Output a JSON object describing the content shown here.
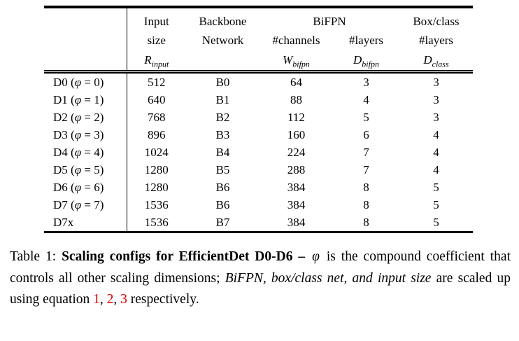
{
  "colors": {
    "background": "#ffffff",
    "text": "#000000",
    "rule": "#000000",
    "ref_red": "#e60000"
  },
  "table": {
    "bifpn_group": "BiFPN",
    "header": {
      "cols": [
        {
          "l1": "Input",
          "l2": "size",
          "var": "R",
          "sub": "input"
        },
        {
          "l1": "Backbone",
          "l2": "Network"
        },
        {
          "l1": "",
          "l2": "#channels",
          "var": "W",
          "sub": "bifpn"
        },
        {
          "l1": "",
          "l2": "#layers",
          "var": "D",
          "sub": "bifpn"
        },
        {
          "l1": "Box/class",
          "l2": "#layers",
          "var": "D",
          "sub": "class"
        }
      ]
    },
    "rows": [
      [
        "D0 (φ = 0)",
        "512",
        "B0",
        "64",
        "3",
        "3"
      ],
      [
        "D1 (φ = 1)",
        "640",
        "B1",
        "88",
        "4",
        "3"
      ],
      [
        "D2 (φ = 2)",
        "768",
        "B2",
        "112",
        "5",
        "3"
      ],
      [
        "D3 (φ = 3)",
        "896",
        "B3",
        "160",
        "6",
        "4"
      ],
      [
        "D4 (φ = 4)",
        "1024",
        "B4",
        "224",
        "7",
        "4"
      ],
      [
        "D5 (φ = 5)",
        "1280",
        "B5",
        "288",
        "7",
        "4"
      ],
      [
        "D6 (φ = 6)",
        "1280",
        "B6",
        "384",
        "8",
        "5"
      ],
      [
        "D7 (φ = 7)",
        "1536",
        "B6",
        "384",
        "8",
        "5"
      ],
      [
        "D7x",
        "1536",
        "B7",
        "384",
        "8",
        "5"
      ]
    ]
  },
  "caption": {
    "label": "Table 1: ",
    "bold": "Scaling configs for EfficientDet D0-D6 – ",
    "phi": "φ",
    "text_after_phi": " is the compound coefficient that controls all other scaling dimensions; ",
    "italic": "BiFPN, box/class net, and input size",
    "text_mid": " are scaled up using equation ",
    "refs": [
      "1",
      "2",
      "3"
    ],
    "ref_separator": ", ",
    "text_end": " respectively."
  }
}
